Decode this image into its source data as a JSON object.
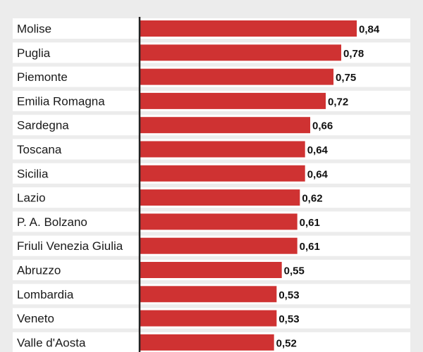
{
  "chart_data": {
    "type": "bar",
    "orientation": "horizontal",
    "categories": [
      "Molise",
      "Puglia",
      "Piemonte",
      "Emilia Romagna",
      "Sardegna",
      "Toscana",
      "Sicilia",
      "Lazio",
      "P. A. Bolzano",
      "Friuli Venezia Giulia",
      "Abruzzo",
      "Lombardia",
      "Veneto",
      "Valle d'Aosta"
    ],
    "values": [
      0.84,
      0.78,
      0.75,
      0.72,
      0.66,
      0.64,
      0.64,
      0.62,
      0.61,
      0.61,
      0.55,
      0.53,
      0.53,
      0.52
    ],
    "value_labels": [
      "0,84",
      "0,78",
      "0,75",
      "0,72",
      "0,66",
      "0,64",
      "0,64",
      "0,62",
      "0,61",
      "0,61",
      "0,55",
      "0,53",
      "0,53",
      "0,52"
    ],
    "title": "",
    "xlabel": "",
    "ylabel": "",
    "xlim": [
      0,
      1.0
    ],
    "grid": false,
    "legend": "none",
    "colors": {
      "bar": "#cf3232",
      "row_background": "#ffffff",
      "page_background": "#ececec",
      "axis": "#222222"
    }
  }
}
